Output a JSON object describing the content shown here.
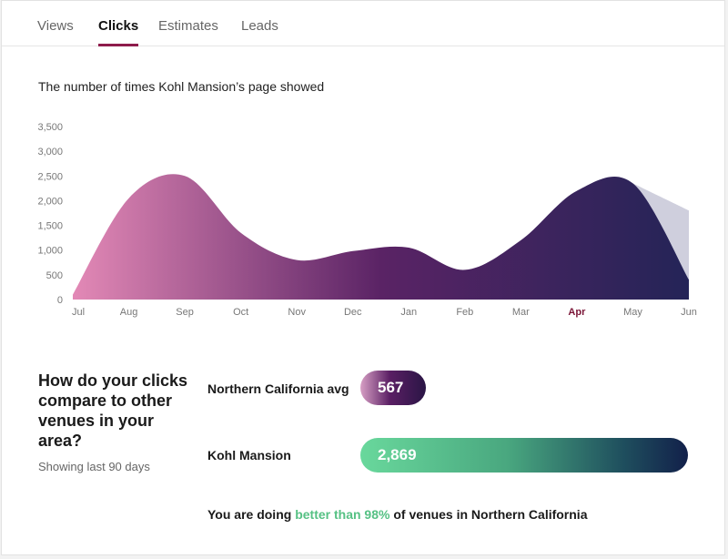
{
  "tabs": [
    {
      "label": "Views",
      "active": false
    },
    {
      "label": "Clicks",
      "active": true
    },
    {
      "label": "Estimates",
      "active": false
    },
    {
      "label": "Leads",
      "active": false
    }
  ],
  "chart_title": "The number of times Kohl Mansion’s page showed",
  "chart_data": {
    "type": "area",
    "title": "",
    "xlabel": "",
    "ylabel": "",
    "categories": [
      "Jul",
      "Aug",
      "Sep",
      "Oct",
      "Nov",
      "Dec",
      "Jan",
      "Feb",
      "Mar",
      "Apr",
      "May",
      "Jun"
    ],
    "highlighted_category": "Apr",
    "ylim": [
      0,
      3500
    ],
    "yticks": [
      0,
      500,
      1000,
      1500,
      2000,
      2500,
      3000,
      3500
    ],
    "ytick_labels": [
      "0",
      "500",
      "1,000",
      "1,500",
      "2,000",
      "2,500",
      "3,000",
      "3,500"
    ],
    "grid": false,
    "series": [
      {
        "values": [
          100,
          2050,
          2500,
          1350,
          800,
          980,
          1050,
          600,
          1200,
          2200,
          2350,
          400
        ],
        "color_start": "#e389b6",
        "color_mid": "#5a2365",
        "color_end": "#242457"
      },
      {
        "values": [
          null,
          null,
          null,
          null,
          null,
          null,
          null,
          null,
          null,
          null,
          2350,
          1800
        ],
        "color": "#cfcfdd"
      }
    ]
  },
  "comparison": {
    "heading": "How do your clicks compare to other venues in your area?",
    "subtext": "Showing last 90 days",
    "rows": [
      {
        "label": "Northern California avg",
        "value": "567",
        "fraction": 0.198
      },
      {
        "label": "Kohl Mansion",
        "value": "2,869",
        "fraction": 1.0
      }
    ],
    "summary_prefix": "You are doing",
    "summary_highlight": "better than 98%",
    "summary_suffix": "of venues in Northern California"
  },
  "colors": {
    "tab_underline": "#8e1c4c",
    "highlight_green": "#56c184",
    "highlight_month": "#7a1436"
  }
}
